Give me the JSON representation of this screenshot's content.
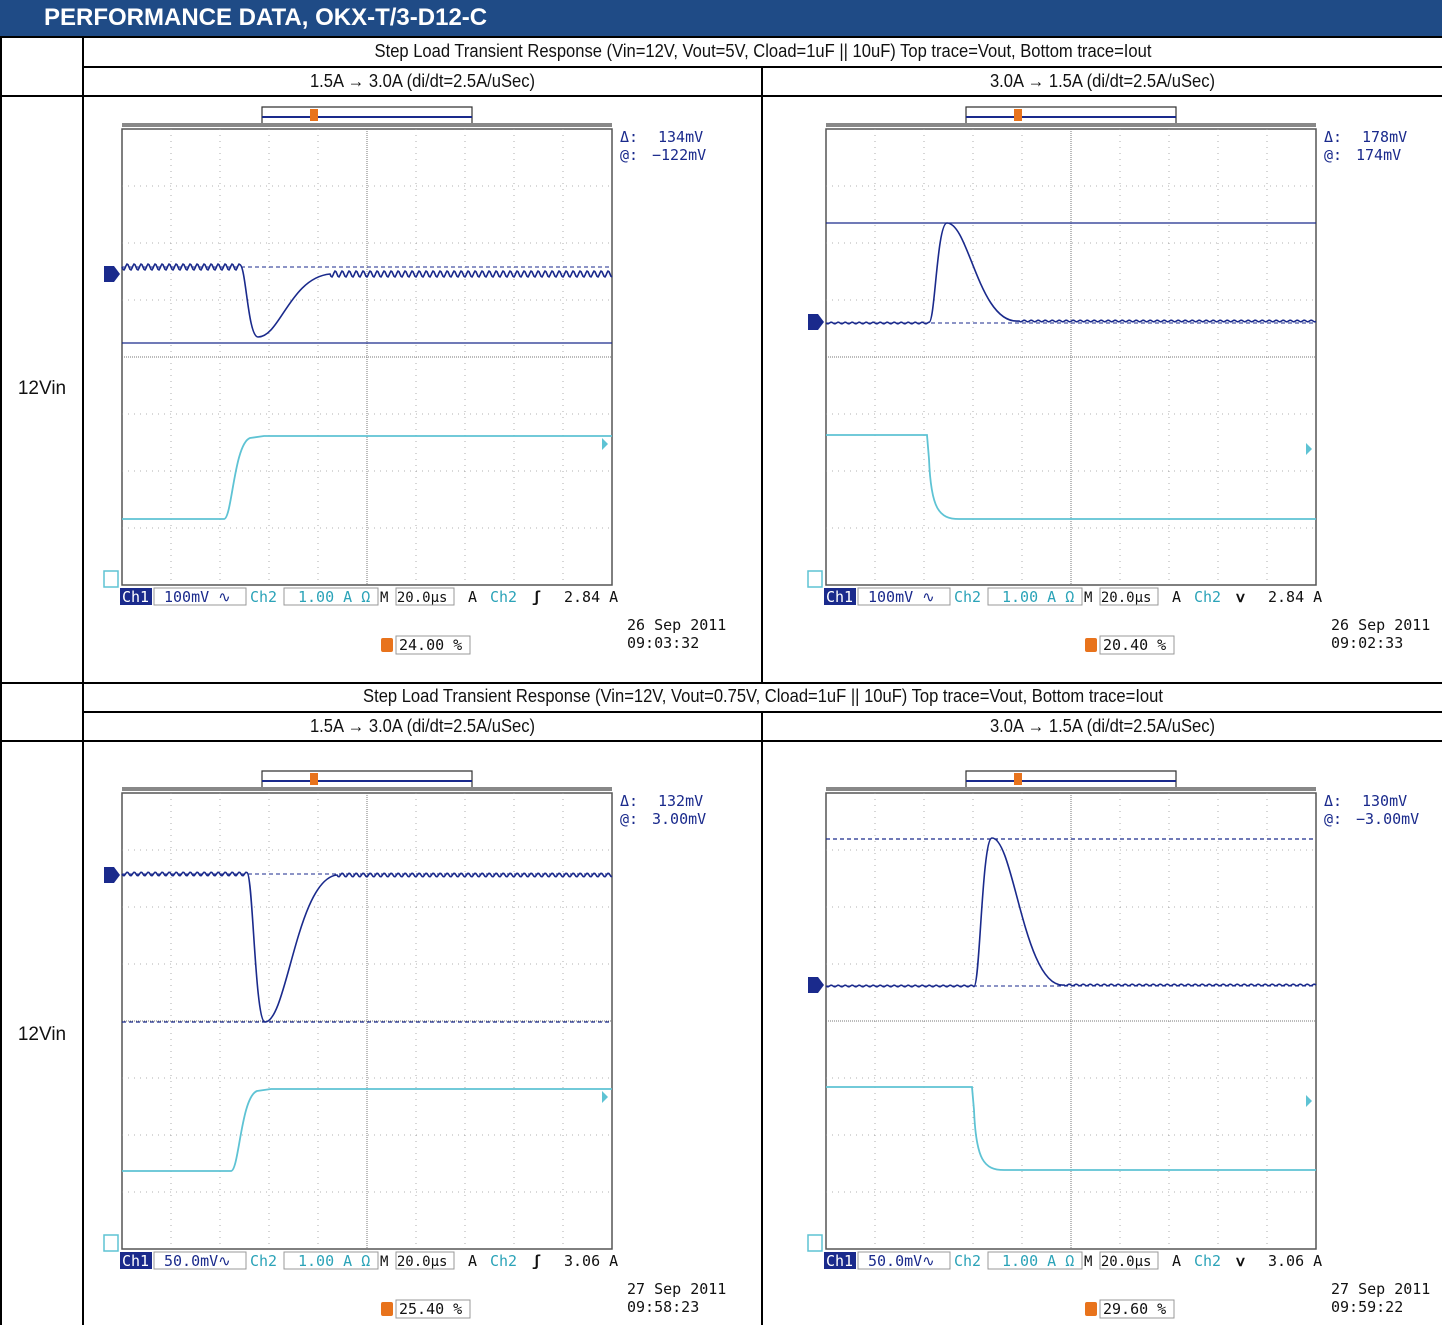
{
  "header": {
    "title": "PERFORMANCE DATA, OKX-T/3-D12-C"
  },
  "colors": {
    "header_bg": "#1f4b86",
    "ch1": "#1a2a8c",
    "ch2": "#5ec3d4",
    "trigger": "#e8731c",
    "grid": "#999999"
  },
  "sections": [
    {
      "title": "Step Load Transient Response (Vin=12V, Vout=5V, Cload=1uF || 10uF) Top trace=Vout, Bottom trace=Iout",
      "col_left": "1.5A → 3.0A (di/dt=2.5A/uSec)",
      "col_right": "3.0A → 1.5A (di/dt=2.5A/uSec)",
      "row_label": "12Vin",
      "scopes": [
        {
          "delta_label": "Δ:",
          "delta": "134mV",
          "at_label": "@:",
          "at": "−122mV",
          "ch1_label": "Ch1",
          "ch1_scale": "100mV ∿",
          "ch2_label": "Ch2",
          "ch2_scale": "1.00 A Ω",
          "timebase": "M 20.0µs",
          "trig_mode": "A",
          "trig_src": "Ch2",
          "trig_slope": "ʃ",
          "trig_level": "2.84 A",
          "date": "26 Sep  2011",
          "time": "09:03:32",
          "trig_pos": "24.00 %"
        },
        {
          "delta_label": "Δ:",
          "delta": "178mV",
          "at_label": "@:",
          "at": "174mV",
          "ch1_label": "Ch1",
          "ch1_scale": "100mV ∿",
          "ch2_label": "Ch2",
          "ch2_scale": "1.00 A Ω",
          "timebase": "M 20.0µs",
          "trig_mode": "A",
          "trig_src": "Ch2",
          "trig_slope": "ⅴ",
          "trig_level": "2.84 A",
          "date": "26 Sep  2011",
          "time": "09:02:33",
          "trig_pos": "20.40 %"
        }
      ]
    },
    {
      "title": "Step Load Transient Response (Vin=12V, Vout=0.75V, Cload=1uF || 10uF) Top trace=Vout, Bottom trace=Iout",
      "col_left": "1.5A → 3.0A (di/dt=2.5A/uSec)",
      "col_right": "3.0A → 1.5A (di/dt=2.5A/uSec)",
      "row_label": "12Vin",
      "scopes": [
        {
          "delta_label": "Δ:",
          "delta": "132mV",
          "at_label": "@:",
          "at": "3.00mV",
          "ch1_label": "Ch1",
          "ch1_scale": "50.0mV∿",
          "ch2_label": "Ch2",
          "ch2_scale": "1.00 A Ω",
          "timebase": "M 20.0µs",
          "trig_mode": "A",
          "trig_src": "Ch2",
          "trig_slope": "ʃ",
          "trig_level": "3.06 A",
          "date": "27 Sep  2011",
          "time": "09:58:23",
          "trig_pos": "25.40 %"
        },
        {
          "delta_label": "Δ:",
          "delta": "130mV",
          "at_label": "@:",
          "at": "−3.00mV",
          "ch1_label": "Ch1",
          "ch1_scale": "50.0mV∿",
          "ch2_label": "Ch2",
          "ch2_scale": "1.00 A Ω",
          "timebase": "M 20.0µs",
          "trig_mode": "A",
          "trig_src": "Ch2",
          "trig_slope": "ⅴ",
          "trig_level": "3.06 A",
          "date": "27 Sep  2011",
          "time": "09:59:22",
          "trig_pos": "29.60 %"
        }
      ]
    }
  ]
}
